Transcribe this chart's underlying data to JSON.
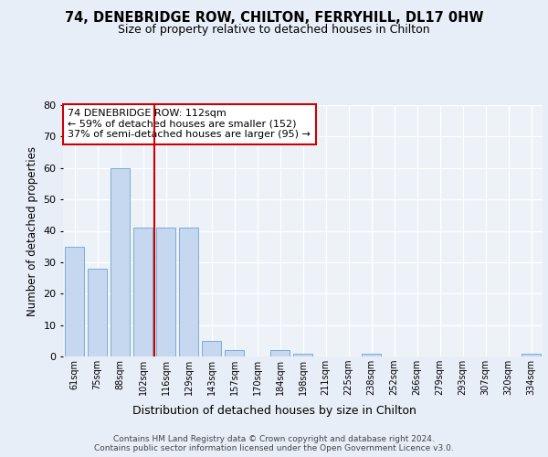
{
  "title1": "74, DENEBRIDGE ROW, CHILTON, FERRYHILL, DL17 0HW",
  "title2": "Size of property relative to detached houses in Chilton",
  "xlabel": "Distribution of detached houses by size in Chilton",
  "ylabel": "Number of detached properties",
  "categories": [
    "61sqm",
    "75sqm",
    "88sqm",
    "102sqm",
    "116sqm",
    "129sqm",
    "143sqm",
    "157sqm",
    "170sqm",
    "184sqm",
    "198sqm",
    "211sqm",
    "225sqm",
    "238sqm",
    "252sqm",
    "266sqm",
    "279sqm",
    "293sqm",
    "307sqm",
    "320sqm",
    "334sqm"
  ],
  "values": [
    35,
    28,
    60,
    41,
    41,
    41,
    5,
    2,
    0,
    2,
    1,
    0,
    0,
    1,
    0,
    0,
    0,
    0,
    0,
    0,
    1
  ],
  "bar_color": "#c5d8f0",
  "bar_edge_color": "#7aadd4",
  "vline_x": 3.5,
  "vline_color": "#cc0000",
  "annotation_text": "74 DENEBRIDGE ROW: 112sqm\n← 59% of detached houses are smaller (152)\n37% of semi-detached houses are larger (95) →",
  "annotation_box_color": "#ffffff",
  "annotation_box_edge": "#cc0000",
  "ylim": [
    0,
    80
  ],
  "yticks": [
    0,
    10,
    20,
    30,
    40,
    50,
    60,
    70,
    80
  ],
  "footer": "Contains HM Land Registry data © Crown copyright and database right 2024.\nContains public sector information licensed under the Open Government Licence v3.0.",
  "bg_color": "#e8eef7",
  "plot_bg_color": "#edf2f9"
}
